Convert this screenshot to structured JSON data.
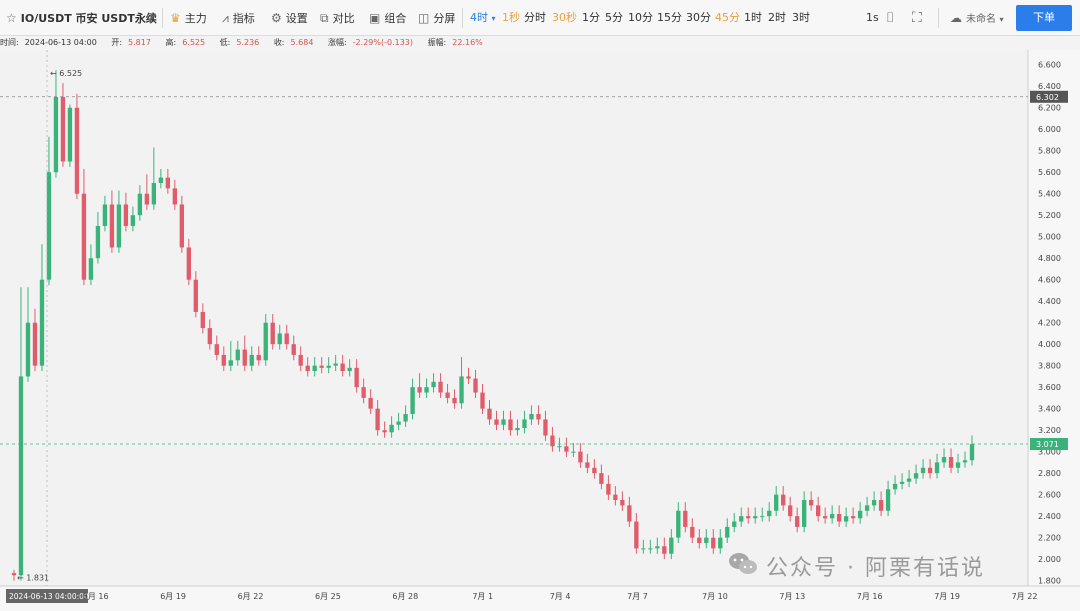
{
  "toolbar": {
    "symbol": "IO/USDT 币安 USDT永续",
    "main": "主力",
    "indicator": "指标",
    "settings": "设置",
    "compare": "对比",
    "combo": "组合",
    "split": "分屏",
    "timeframes": [
      {
        "label": "4时",
        "state": "active"
      },
      {
        "label": "1秒",
        "state": "warn"
      },
      {
        "label": "分时",
        "state": "normal"
      },
      {
        "label": "30秒",
        "state": "warn"
      },
      {
        "label": "1分",
        "state": "normal"
      },
      {
        "label": "5分",
        "state": "normal"
      },
      {
        "label": "10分",
        "state": "normal"
      },
      {
        "label": "15分",
        "state": "normal"
      },
      {
        "label": "30分",
        "state": "normal"
      },
      {
        "label": "45分",
        "state": "warn"
      },
      {
        "label": "1时",
        "state": "normal"
      },
      {
        "label": "2时",
        "state": "normal"
      },
      {
        "label": "3时",
        "state": "normal"
      }
    ],
    "interval": "1s",
    "unnamed": "未命名",
    "order": "下单"
  },
  "info": {
    "time_label": "时间:",
    "time": "2024-06-13 04:00",
    "open_label": "开:",
    "open": "5.817",
    "high_label": "高:",
    "high": "6.525",
    "low_label": "低:",
    "low": "5.236",
    "close_label": "收:",
    "close": "5.684",
    "change_label": "涨幅:",
    "change": "-2.29%(-0.133)",
    "amp_label": "振幅:",
    "amp": "22.16%"
  },
  "colors": {
    "up": "#39b37a",
    "down": "#e05c6a",
    "accent": "#2b7de9"
  },
  "chart_data": {
    "type": "candlestick",
    "ylim": [
      1.75,
      6.7
    ],
    "yticks": [
      1.8,
      2.0,
      2.2,
      2.4,
      2.6,
      2.8,
      3.0,
      3.2,
      3.4,
      3.6,
      3.8,
      4.0,
      4.2,
      4.4,
      4.6,
      4.8,
      5.0,
      5.2,
      5.4,
      5.6,
      5.8,
      6.0,
      6.2,
      6.4,
      6.6
    ],
    "ytick_labels": [
      "1.800",
      "2.000",
      "2.200",
      "2.400",
      "2.600",
      "2.800",
      "3.000",
      "3.200",
      "3.400",
      "3.600",
      "3.800",
      "4.000",
      "4.200",
      "4.400",
      "4.600",
      "4.800",
      "5.000",
      "5.200",
      "5.400",
      "5.600",
      "5.800",
      "6.000",
      "6.200",
      "6.400",
      "6.600"
    ],
    "x_labels": [
      "2024-06-13 04:00:00",
      "6月 16",
      "6月 19",
      "6月 22",
      "6月 25",
      "6月 28",
      "7月 1",
      "7月 4",
      "7月 7",
      "7月 10",
      "7月 13",
      "7月 16",
      "7月 19",
      "7月 22"
    ],
    "x_label_index": [
      0,
      19,
      37,
      55,
      73,
      91,
      109,
      127,
      145,
      163,
      181,
      199,
      217,
      235
    ],
    "high_annotation": "6.525",
    "low_annotation": "1.831",
    "crosshair_price": "6.302",
    "last_price": "3.071",
    "closes": [
      1.85,
      3.7,
      4.2,
      3.8,
      4.6,
      5.6,
      6.3,
      5.7,
      6.2,
      5.4,
      4.6,
      4.8,
      5.1,
      5.3,
      4.9,
      5.3,
      5.1,
      5.2,
      5.4,
      5.3,
      5.5,
      5.55,
      5.45,
      5.3,
      4.9,
      4.6,
      4.3,
      4.15,
      4.0,
      3.9,
      3.8,
      3.85,
      3.95,
      3.8,
      3.9,
      3.85,
      4.2,
      4.0,
      4.1,
      4.0,
      3.9,
      3.8,
      3.75,
      3.8,
      3.78,
      3.8,
      3.82,
      3.75,
      3.78,
      3.6,
      3.5,
      3.4,
      3.2,
      3.18,
      3.25,
      3.28,
      3.35,
      3.6,
      3.55,
      3.6,
      3.65,
      3.55,
      3.5,
      3.45,
      3.7,
      3.68,
      3.55,
      3.4,
      3.3,
      3.25,
      3.3,
      3.2,
      3.22,
      3.3,
      3.35,
      3.3,
      3.15,
      3.05,
      3.05,
      3.0,
      3.0,
      2.9,
      2.85,
      2.8,
      2.7,
      2.6,
      2.55,
      2.5,
      2.35,
      2.1,
      2.1,
      2.1,
      2.12,
      2.05,
      2.2,
      2.45,
      2.3,
      2.2,
      2.15,
      2.2,
      2.1,
      2.2,
      2.3,
      2.35,
      2.4,
      2.38,
      2.4,
      2.4,
      2.45,
      2.6,
      2.5,
      2.4,
      2.3,
      2.55,
      2.5,
      2.4,
      2.38,
      2.42,
      2.35,
      2.4,
      2.38,
      2.45,
      2.5,
      2.55,
      2.45,
      2.65,
      2.7,
      2.72,
      2.75,
      2.8,
      2.85,
      2.8,
      2.9,
      2.95,
      2.85,
      2.9,
      2.92,
      3.07
    ],
    "wick_up": [
      0.0,
      0.8,
      0.3,
      0.1,
      0.3,
      0.3,
      0.22,
      0.1,
      0.0,
      0.1,
      0.2,
      0.1,
      0.1,
      0.05,
      0.1,
      0.1,
      0.08,
      0.05,
      0.05,
      0.15,
      0.3,
      0.05,
      0.05,
      0.05,
      0.05,
      0.05,
      0.05,
      0.05,
      0.05,
      0.05,
      0.05,
      0.15,
      0.05,
      0.1,
      0.05,
      0.05,
      0.05,
      0.05,
      0.05,
      0.05,
      0.05,
      0.05,
      0.05,
      0.05,
      0.05,
      0.05,
      0.05,
      0.05,
      0.05,
      0.05,
      0.05,
      0.05,
      0.05,
      0.05,
      0.05,
      0.05,
      0.05,
      0.05,
      0.1,
      0.05,
      0.05,
      0.05,
      0.05,
      0.05,
      0.15,
      0.05,
      0.05,
      0.05,
      0.05,
      0.05,
      0.05,
      0.05,
      0.05,
      0.05,
      0.05,
      0.05,
      0.05,
      0.05,
      0.05,
      0.05,
      0.05,
      0.05,
      0.05,
      0.05,
      0.05,
      0.05,
      0.05,
      0.05,
      0.05,
      0.05,
      0.05,
      0.05,
      0.05,
      0.05,
      0.05,
      0.05,
      0.05,
      0.05,
      0.05,
      0.05,
      0.05,
      0.05,
      0.05,
      0.05,
      0.05,
      0.05,
      0.05,
      0.05,
      0.05,
      0.05,
      0.05,
      0.05,
      0.05,
      0.05,
      0.05,
      0.05,
      0.05,
      0.05,
      0.05,
      0.05,
      0.05,
      0.05,
      0.05,
      0.05,
      0.05,
      0.05,
      0.05,
      0.05,
      0.05,
      0.05,
      0.05,
      0.05,
      0.05,
      0.05,
      0.05,
      0.05,
      0.05,
      0.05
    ]
  },
  "watermark": "公众号 · 阿栗有话说"
}
